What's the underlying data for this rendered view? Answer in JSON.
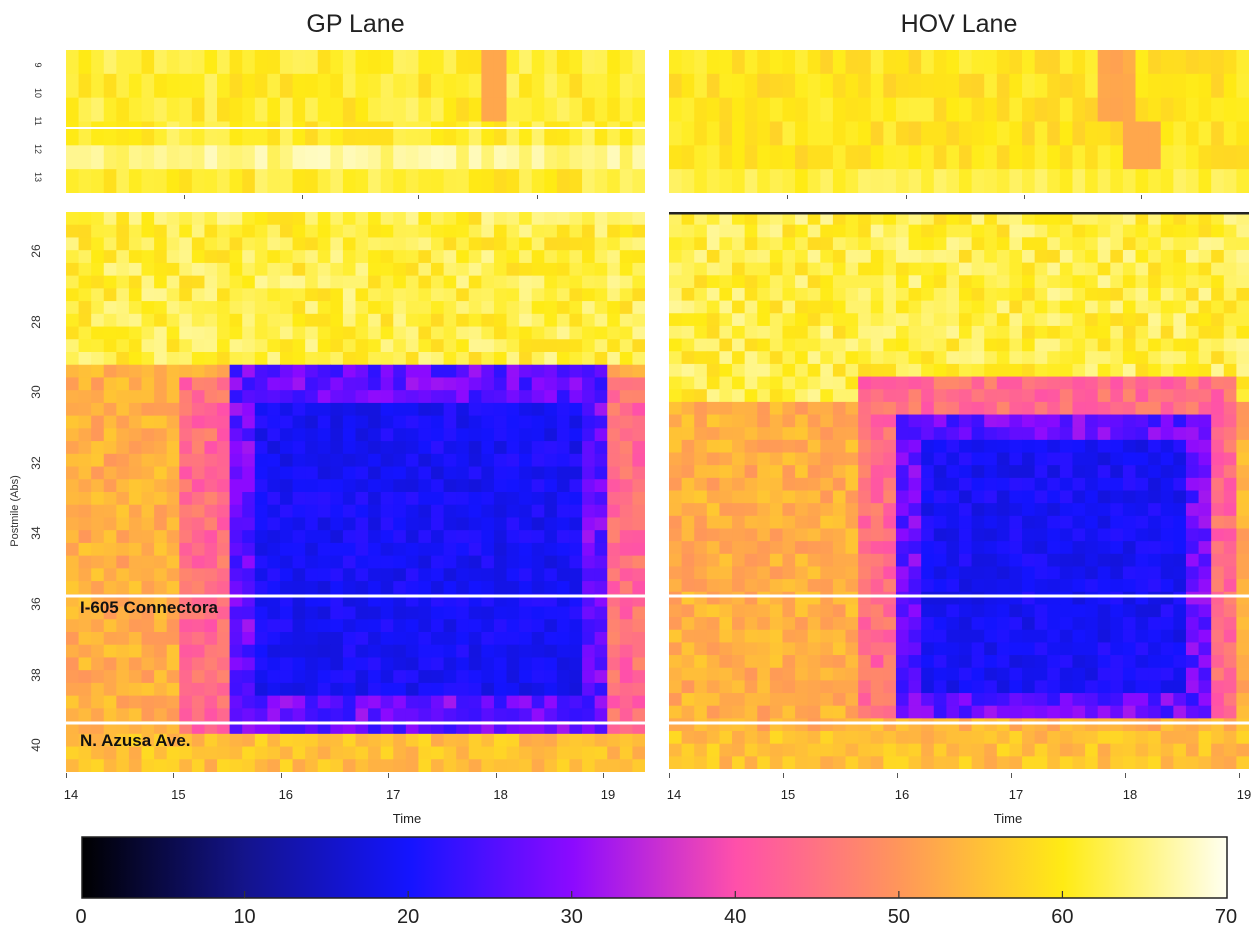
{
  "chart_data": [
    {
      "type": "heatmap",
      "title": "GP Lane",
      "xlabel": "Time",
      "ylabel": "Postmile (Abs)",
      "x_range": [
        14,
        19
      ],
      "x_ticks": [
        "14",
        "15",
        "16",
        "17",
        "18",
        "19"
      ],
      "y_ticks_top": [
        "9",
        "10",
        "11",
        "12",
        "13"
      ],
      "y_ticks_main": [
        "26",
        "28",
        "30",
        "32",
        "34",
        "36",
        "38",
        "40"
      ],
      "annotations": [
        "I-605 Connectora",
        "N. Azusa Ave."
      ]
    },
    {
      "type": "heatmap",
      "title": "HOV Lane",
      "xlabel": "Time",
      "x_range": [
        14,
        19
      ],
      "x_ticks": [
        "14",
        "15",
        "16",
        "17",
        "18",
        "19"
      ]
    }
  ],
  "colorbar": {
    "min": 0,
    "max": 70,
    "ticks": [
      "0",
      "10",
      "20",
      "30",
      "40",
      "50",
      "60",
      "70"
    ]
  }
}
